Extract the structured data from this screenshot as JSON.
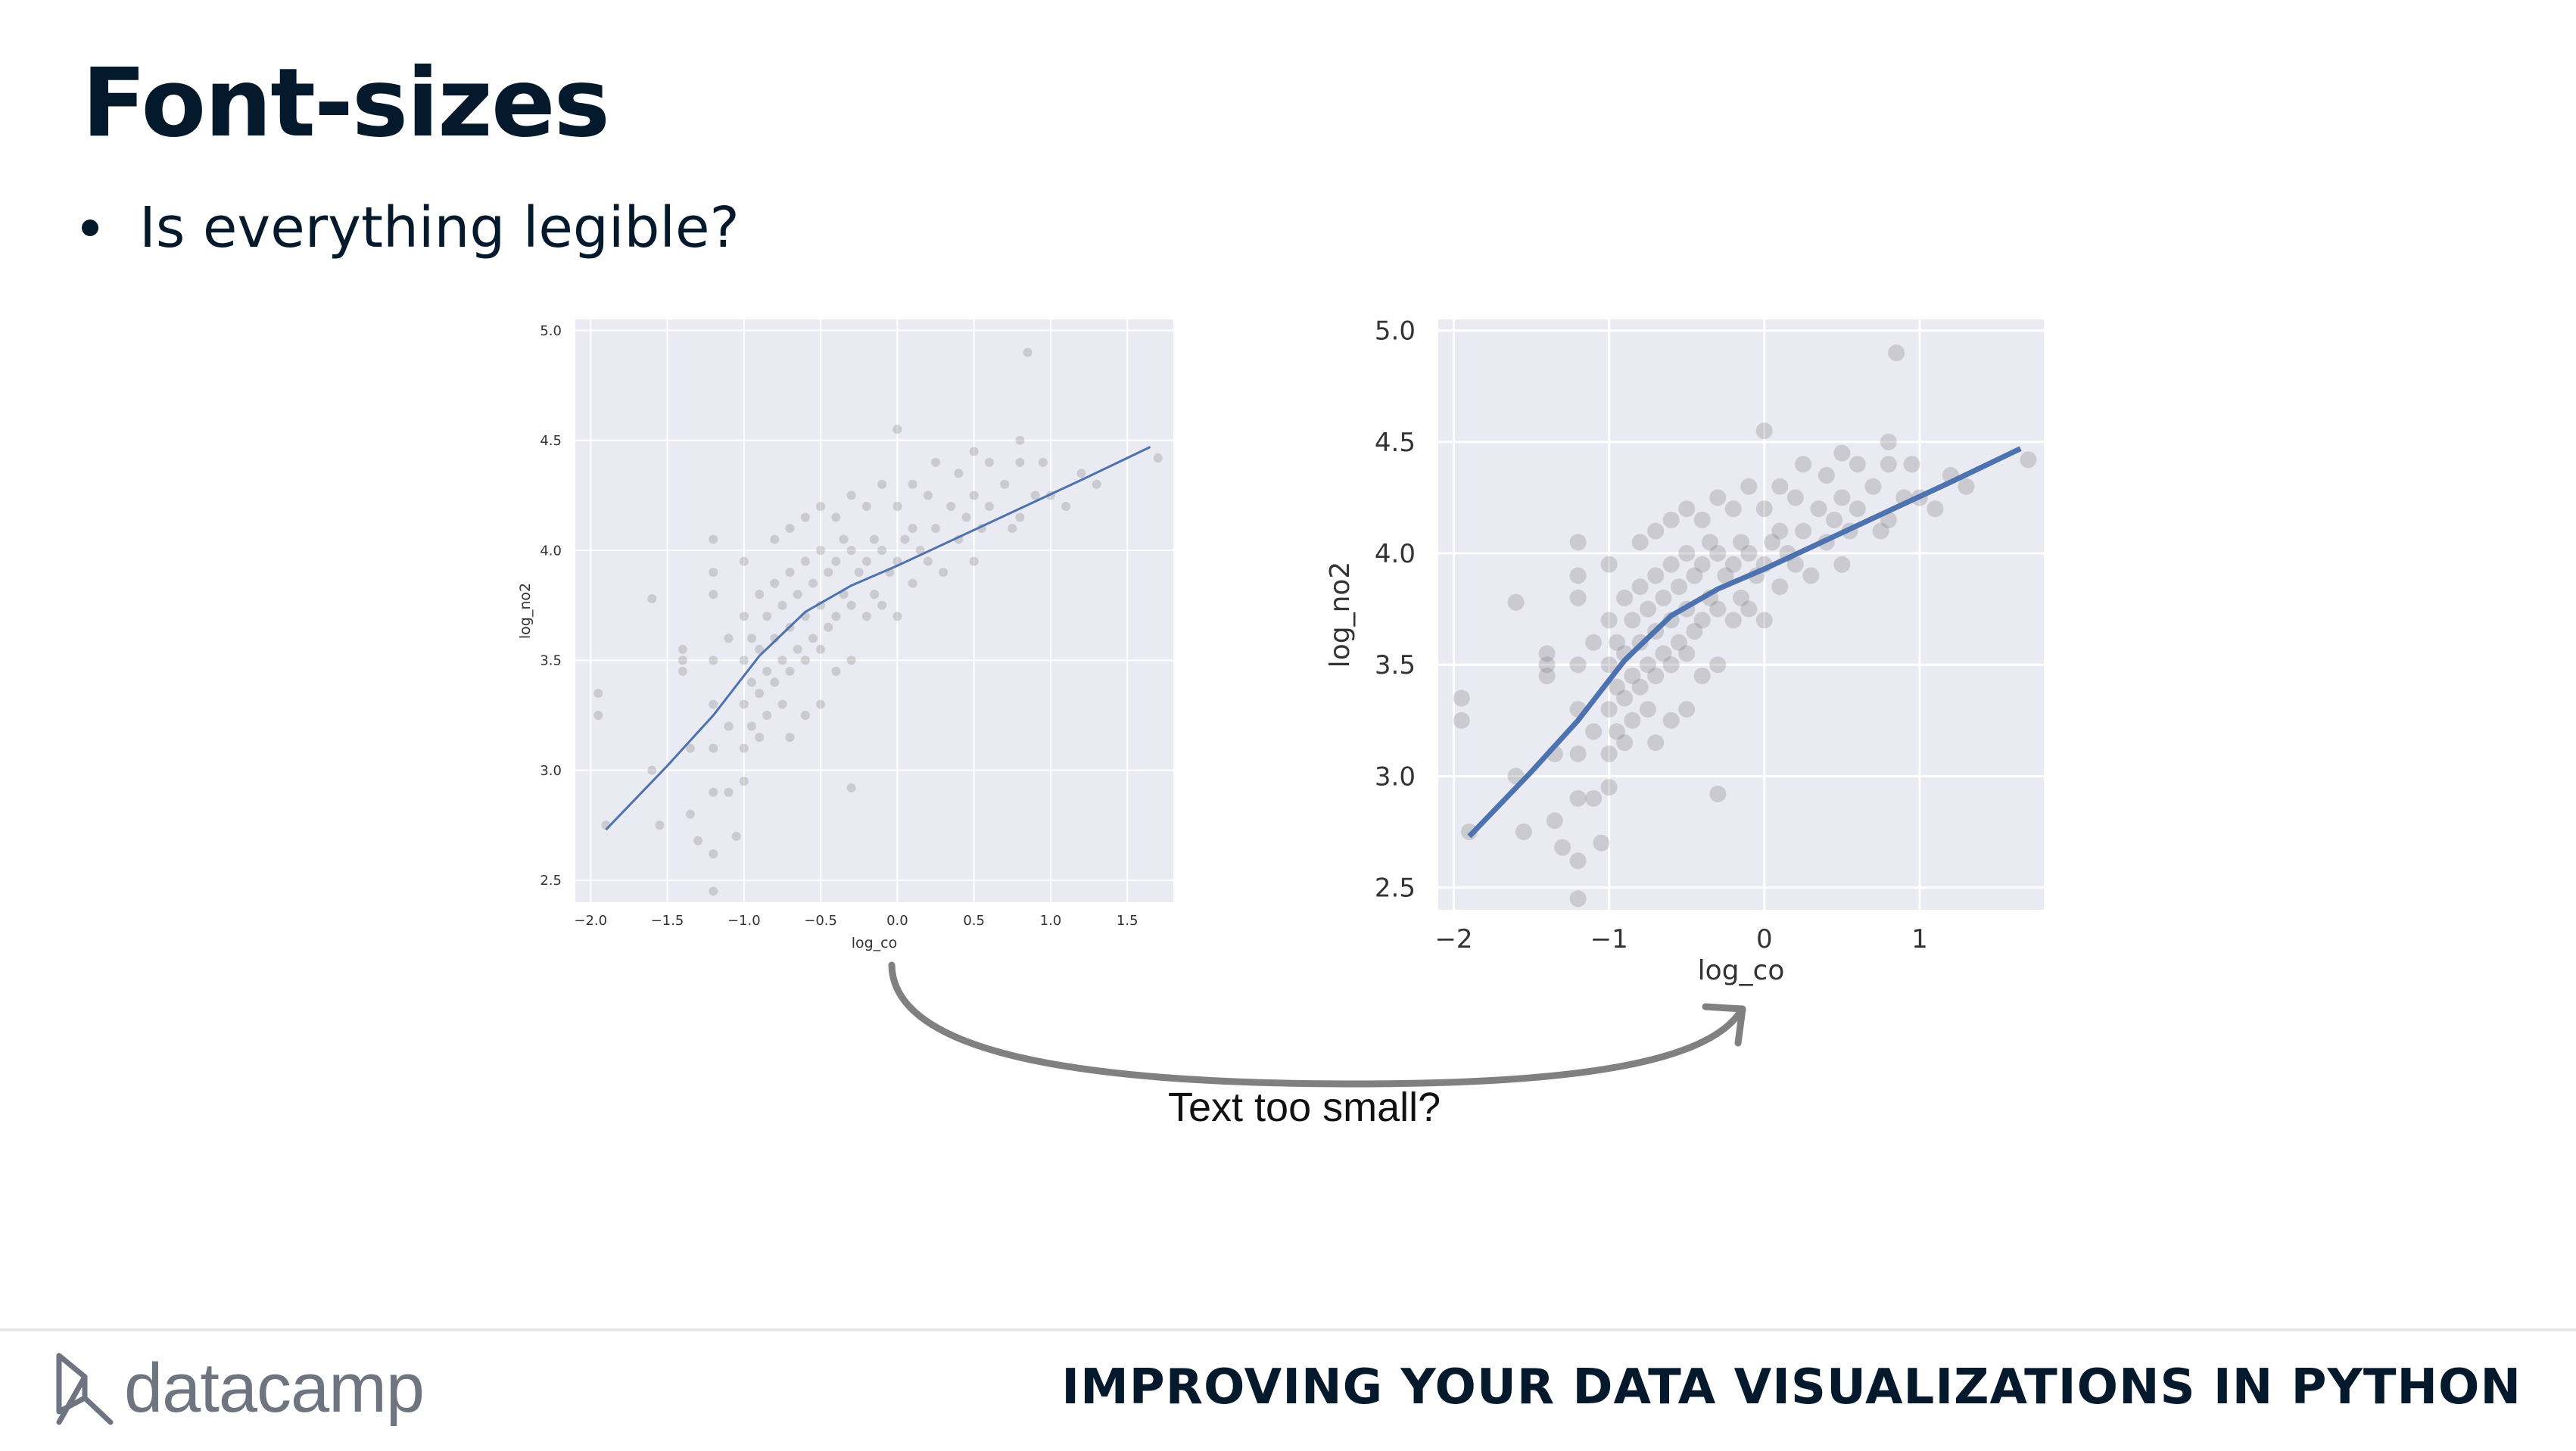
{
  "slide": {
    "title": "Font-sizes",
    "bullet": "Is everything legible?",
    "caption": "Text too small?"
  },
  "footer": {
    "brand": "datacamp",
    "course_title": "IMPROVING YOUR DATA VISUALIZATIONS IN PYTHON"
  },
  "colors": {
    "text": "#05192d",
    "plot_bg": "#eaeaf2",
    "points": "#808080",
    "line": "#4c72b0",
    "arrow": "#808080"
  },
  "chart_data": [
    {
      "type": "scatter",
      "title": "",
      "xlabel": "log_co",
      "ylabel": "log_no2",
      "xlim": [
        -2.1,
        1.8
      ],
      "ylim": [
        2.4,
        5.05
      ],
      "xticks": [
        "−2.0",
        "−1.5",
        "−1.0",
        "−0.5",
        "0.0",
        "0.5",
        "1.0",
        "1.5"
      ],
      "xtick_values": [
        -2.0,
        -1.5,
        -1.0,
        -0.5,
        0.0,
        0.5,
        1.0,
        1.5
      ],
      "yticks": [
        "2.5",
        "3.0",
        "3.5",
        "4.0",
        "4.5",
        "5.0"
      ],
      "ytick_values": [
        2.5,
        3.0,
        3.5,
        4.0,
        4.5,
        5.0
      ],
      "grid": true,
      "trend_line": [
        [
          -1.9,
          2.73
        ],
        [
          -1.5,
          3.02
        ],
        [
          -1.2,
          3.25
        ],
        [
          -0.9,
          3.52
        ],
        [
          -0.6,
          3.72
        ],
        [
          -0.3,
          3.84
        ],
        [
          0.0,
          3.93
        ],
        [
          0.4,
          4.06
        ],
        [
          0.8,
          4.19
        ],
        [
          1.2,
          4.32
        ],
        [
          1.65,
          4.47
        ]
      ],
      "points": [
        [
          -1.95,
          3.35
        ],
        [
          -1.95,
          3.25
        ],
        [
          -1.9,
          2.75
        ],
        [
          -1.6,
          3.78
        ],
        [
          -1.6,
          3.0
        ],
        [
          -1.55,
          2.75
        ],
        [
          -1.4,
          3.55
        ],
        [
          -1.4,
          3.5
        ],
        [
          -1.4,
          3.45
        ],
        [
          -1.35,
          3.1
        ],
        [
          -1.35,
          2.8
        ],
        [
          -1.3,
          2.68
        ],
        [
          -1.2,
          4.05
        ],
        [
          -1.2,
          3.9
        ],
        [
          -1.2,
          3.8
        ],
        [
          -1.2,
          3.5
        ],
        [
          -1.2,
          3.3
        ],
        [
          -1.2,
          3.1
        ],
        [
          -1.2,
          2.9
        ],
        [
          -1.2,
          2.62
        ],
        [
          -1.2,
          2.45
        ],
        [
          -1.1,
          3.6
        ],
        [
          -1.1,
          3.2
        ],
        [
          -1.1,
          2.9
        ],
        [
          -1.05,
          2.7
        ],
        [
          -1.0,
          3.95
        ],
        [
          -1.0,
          3.7
        ],
        [
          -1.0,
          3.5
        ],
        [
          -1.0,
          3.3
        ],
        [
          -1.0,
          3.1
        ],
        [
          -1.0,
          2.95
        ],
        [
          -0.95,
          3.6
        ],
        [
          -0.95,
          3.4
        ],
        [
          -0.95,
          3.2
        ],
        [
          -0.9,
          3.8
        ],
        [
          -0.9,
          3.55
        ],
        [
          -0.9,
          3.35
        ],
        [
          -0.9,
          3.15
        ],
        [
          -0.85,
          3.7
        ],
        [
          -0.85,
          3.45
        ],
        [
          -0.85,
          3.25
        ],
        [
          -0.8,
          4.05
        ],
        [
          -0.8,
          3.85
        ],
        [
          -0.8,
          3.6
        ],
        [
          -0.8,
          3.4
        ],
        [
          -0.75,
          3.75
        ],
        [
          -0.75,
          3.5
        ],
        [
          -0.75,
          3.3
        ],
        [
          -0.7,
          4.1
        ],
        [
          -0.7,
          3.9
        ],
        [
          -0.7,
          3.65
        ],
        [
          -0.7,
          3.45
        ],
        [
          -0.7,
          3.15
        ],
        [
          -0.65,
          3.8
        ],
        [
          -0.65,
          3.55
        ],
        [
          -0.6,
          4.15
        ],
        [
          -0.6,
          3.95
        ],
        [
          -0.6,
          3.7
        ],
        [
          -0.6,
          3.5
        ],
        [
          -0.6,
          3.25
        ],
        [
          -0.55,
          3.85
        ],
        [
          -0.55,
          3.6
        ],
        [
          -0.5,
          4.2
        ],
        [
          -0.5,
          4.0
        ],
        [
          -0.5,
          3.75
        ],
        [
          -0.5,
          3.55
        ],
        [
          -0.5,
          3.3
        ],
        [
          -0.45,
          3.9
        ],
        [
          -0.45,
          3.65
        ],
        [
          -0.4,
          4.15
        ],
        [
          -0.4,
          3.95
        ],
        [
          -0.4,
          3.7
        ],
        [
          -0.4,
          3.45
        ],
        [
          -0.35,
          4.05
        ],
        [
          -0.35,
          3.8
        ],
        [
          -0.3,
          4.25
        ],
        [
          -0.3,
          4.0
        ],
        [
          -0.3,
          3.75
        ],
        [
          -0.3,
          3.5
        ],
        [
          -0.3,
          2.92
        ],
        [
          -0.25,
          3.9
        ],
        [
          -0.2,
          4.2
        ],
        [
          -0.2,
          3.95
        ],
        [
          -0.2,
          3.7
        ],
        [
          -0.15,
          4.05
        ],
        [
          -0.15,
          3.8
        ],
        [
          -0.1,
          4.3
        ],
        [
          -0.1,
          4.0
        ],
        [
          -0.1,
          3.75
        ],
        [
          -0.05,
          3.9
        ],
        [
          0.0,
          4.55
        ],
        [
          0.0,
          4.2
        ],
        [
          0.0,
          3.95
        ],
        [
          0.0,
          3.7
        ],
        [
          0.05,
          4.05
        ],
        [
          0.1,
          4.3
        ],
        [
          0.1,
          4.1
        ],
        [
          0.1,
          3.85
        ],
        [
          0.15,
          4.0
        ],
        [
          0.2,
          4.25
        ],
        [
          0.2,
          3.95
        ],
        [
          0.25,
          4.4
        ],
        [
          0.25,
          4.1
        ],
        [
          0.3,
          3.9
        ],
        [
          0.35,
          4.2
        ],
        [
          0.4,
          4.35
        ],
        [
          0.4,
          4.05
        ],
        [
          0.45,
          4.15
        ],
        [
          0.5,
          4.45
        ],
        [
          0.5,
          4.25
        ],
        [
          0.5,
          3.95
        ],
        [
          0.55,
          4.1
        ],
        [
          0.6,
          4.4
        ],
        [
          0.6,
          4.2
        ],
        [
          0.7,
          4.3
        ],
        [
          0.75,
          4.1
        ],
        [
          0.8,
          4.5
        ],
        [
          0.8,
          4.4
        ],
        [
          0.8,
          4.15
        ],
        [
          0.85,
          4.9
        ],
        [
          0.9,
          4.25
        ],
        [
          0.95,
          4.4
        ],
        [
          1.0,
          4.25
        ],
        [
          1.1,
          4.2
        ],
        [
          1.2,
          4.35
        ],
        [
          1.3,
          4.3
        ],
        [
          1.7,
          4.42
        ]
      ]
    },
    {
      "type": "scatter",
      "title": "",
      "xlabel": "log_co",
      "ylabel": "log_no2",
      "xlim": [
        -2.1,
        1.8
      ],
      "ylim": [
        2.4,
        5.05
      ],
      "xticks": [
        "−2",
        "−1",
        "0",
        "1"
      ],
      "xtick_values": [
        -2,
        -1,
        0,
        1
      ],
      "yticks": [
        "2.5",
        "3.0",
        "3.5",
        "4.0",
        "4.5",
        "5.0"
      ],
      "ytick_values": [
        2.5,
        3.0,
        3.5,
        4.0,
        4.5,
        5.0
      ],
      "grid": true,
      "trend_line": [
        [
          -1.9,
          2.73
        ],
        [
          -1.5,
          3.02
        ],
        [
          -1.2,
          3.25
        ],
        [
          -0.9,
          3.52
        ],
        [
          -0.6,
          3.72
        ],
        [
          -0.3,
          3.84
        ],
        [
          0.0,
          3.93
        ],
        [
          0.4,
          4.06
        ],
        [
          0.8,
          4.19
        ],
        [
          1.2,
          4.32
        ],
        [
          1.65,
          4.47
        ]
      ],
      "points": [
        [
          -1.95,
          3.35
        ],
        [
          -1.95,
          3.25
        ],
        [
          -1.9,
          2.75
        ],
        [
          -1.6,
          3.78
        ],
        [
          -1.6,
          3.0
        ],
        [
          -1.55,
          2.75
        ],
        [
          -1.4,
          3.55
        ],
        [
          -1.4,
          3.5
        ],
        [
          -1.4,
          3.45
        ],
        [
          -1.35,
          3.1
        ],
        [
          -1.35,
          2.8
        ],
        [
          -1.3,
          2.68
        ],
        [
          -1.2,
          4.05
        ],
        [
          -1.2,
          3.9
        ],
        [
          -1.2,
          3.8
        ],
        [
          -1.2,
          3.5
        ],
        [
          -1.2,
          3.3
        ],
        [
          -1.2,
          3.1
        ],
        [
          -1.2,
          2.9
        ],
        [
          -1.2,
          2.62
        ],
        [
          -1.2,
          2.45
        ],
        [
          -1.1,
          3.6
        ],
        [
          -1.1,
          3.2
        ],
        [
          -1.1,
          2.9
        ],
        [
          -1.05,
          2.7
        ],
        [
          -1.0,
          3.95
        ],
        [
          -1.0,
          3.7
        ],
        [
          -1.0,
          3.5
        ],
        [
          -1.0,
          3.3
        ],
        [
          -1.0,
          3.1
        ],
        [
          -1.0,
          2.95
        ],
        [
          -0.95,
          3.6
        ],
        [
          -0.95,
          3.4
        ],
        [
          -0.95,
          3.2
        ],
        [
          -0.9,
          3.8
        ],
        [
          -0.9,
          3.55
        ],
        [
          -0.9,
          3.35
        ],
        [
          -0.9,
          3.15
        ],
        [
          -0.85,
          3.7
        ],
        [
          -0.85,
          3.45
        ],
        [
          -0.85,
          3.25
        ],
        [
          -0.8,
          4.05
        ],
        [
          -0.8,
          3.85
        ],
        [
          -0.8,
          3.6
        ],
        [
          -0.8,
          3.4
        ],
        [
          -0.75,
          3.75
        ],
        [
          -0.75,
          3.5
        ],
        [
          -0.75,
          3.3
        ],
        [
          -0.7,
          4.1
        ],
        [
          -0.7,
          3.9
        ],
        [
          -0.7,
          3.65
        ],
        [
          -0.7,
          3.45
        ],
        [
          -0.7,
          3.15
        ],
        [
          -0.65,
          3.8
        ],
        [
          -0.65,
          3.55
        ],
        [
          -0.6,
          4.15
        ],
        [
          -0.6,
          3.95
        ],
        [
          -0.6,
          3.7
        ],
        [
          -0.6,
          3.5
        ],
        [
          -0.6,
          3.25
        ],
        [
          -0.55,
          3.85
        ],
        [
          -0.55,
          3.6
        ],
        [
          -0.5,
          4.2
        ],
        [
          -0.5,
          4.0
        ],
        [
          -0.5,
          3.75
        ],
        [
          -0.5,
          3.55
        ],
        [
          -0.5,
          3.3
        ],
        [
          -0.45,
          3.9
        ],
        [
          -0.45,
          3.65
        ],
        [
          -0.4,
          4.15
        ],
        [
          -0.4,
          3.95
        ],
        [
          -0.4,
          3.7
        ],
        [
          -0.4,
          3.45
        ],
        [
          -0.35,
          4.05
        ],
        [
          -0.35,
          3.8
        ],
        [
          -0.3,
          4.25
        ],
        [
          -0.3,
          4.0
        ],
        [
          -0.3,
          3.75
        ],
        [
          -0.3,
          3.5
        ],
        [
          -0.3,
          2.92
        ],
        [
          -0.25,
          3.9
        ],
        [
          -0.2,
          4.2
        ],
        [
          -0.2,
          3.95
        ],
        [
          -0.2,
          3.7
        ],
        [
          -0.15,
          4.05
        ],
        [
          -0.15,
          3.8
        ],
        [
          -0.1,
          4.3
        ],
        [
          -0.1,
          4.0
        ],
        [
          -0.1,
          3.75
        ],
        [
          -0.05,
          3.9
        ],
        [
          0.0,
          4.55
        ],
        [
          0.0,
          4.2
        ],
        [
          0.0,
          3.95
        ],
        [
          0.0,
          3.7
        ],
        [
          0.05,
          4.05
        ],
        [
          0.1,
          4.3
        ],
        [
          0.1,
          4.1
        ],
        [
          0.1,
          3.85
        ],
        [
          0.15,
          4.0
        ],
        [
          0.2,
          4.25
        ],
        [
          0.2,
          3.95
        ],
        [
          0.25,
          4.4
        ],
        [
          0.25,
          4.1
        ],
        [
          0.3,
          3.9
        ],
        [
          0.35,
          4.2
        ],
        [
          0.4,
          4.35
        ],
        [
          0.4,
          4.05
        ],
        [
          0.45,
          4.15
        ],
        [
          0.5,
          4.45
        ],
        [
          0.5,
          4.25
        ],
        [
          0.5,
          3.95
        ],
        [
          0.55,
          4.1
        ],
        [
          0.6,
          4.4
        ],
        [
          0.6,
          4.2
        ],
        [
          0.7,
          4.3
        ],
        [
          0.75,
          4.1
        ],
        [
          0.8,
          4.5
        ],
        [
          0.8,
          4.4
        ],
        [
          0.8,
          4.15
        ],
        [
          0.85,
          4.9
        ],
        [
          0.9,
          4.25
        ],
        [
          0.95,
          4.4
        ],
        [
          1.0,
          4.25
        ],
        [
          1.1,
          4.2
        ],
        [
          1.2,
          4.35
        ],
        [
          1.3,
          4.3
        ],
        [
          1.7,
          4.42
        ]
      ]
    }
  ]
}
